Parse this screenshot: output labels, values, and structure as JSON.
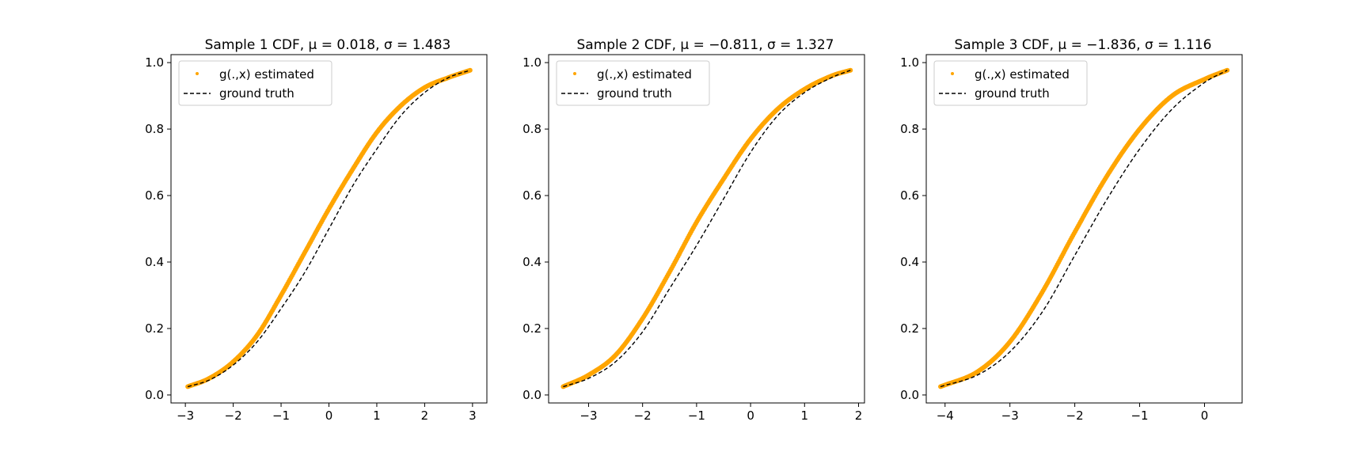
{
  "figure": {
    "background": "#ffffff",
    "estimate_color": "#ffa500",
    "truth_color": "#000000"
  },
  "chart_data": [
    {
      "type": "line",
      "title": "Sample 1 CDF, μ = 0.018, σ = 1.483",
      "mu": 0.018,
      "sigma": 1.483,
      "xlim": [
        -3.3,
        3.3
      ],
      "ylim": [
        -0.024,
        1.024
      ],
      "xticks": [
        -3,
        -2,
        -1,
        0,
        1,
        2,
        3
      ],
      "yticks": [
        0.0,
        0.2,
        0.4,
        0.6,
        0.8,
        1.0
      ],
      "xlabel": "",
      "ylabel": "",
      "grid": false,
      "legend_position": "upper left",
      "series": [
        {
          "name": "g(.,x) estimated",
          "style": "orange dots",
          "x": [
            -2.95,
            -2.5,
            -2.0,
            -1.5,
            -1.0,
            -0.5,
            0.0,
            0.5,
            1.0,
            1.5,
            2.0,
            2.5,
            2.95
          ],
          "y": [
            0.025,
            0.05,
            0.1,
            0.18,
            0.3,
            0.43,
            0.56,
            0.68,
            0.79,
            0.87,
            0.925,
            0.955,
            0.977
          ]
        },
        {
          "name": "ground truth",
          "style": "black dashed",
          "x": [
            -2.95,
            -2.5,
            -2.0,
            -1.5,
            -1.0,
            -0.5,
            0.0,
            0.5,
            1.0,
            1.5,
            2.0,
            2.5,
            2.95
          ],
          "y": [
            0.025,
            0.045,
            0.09,
            0.16,
            0.26,
            0.37,
            0.5,
            0.63,
            0.74,
            0.84,
            0.91,
            0.955,
            0.977
          ]
        }
      ]
    },
    {
      "type": "line",
      "title": "Sample 2 CDF, μ = −0.811, σ = 1.327",
      "mu": -0.811,
      "sigma": 1.327,
      "xlim": [
        -3.74,
        2.11
      ],
      "ylim": [
        -0.024,
        1.024
      ],
      "xticks": [
        -3,
        -2,
        -1,
        0,
        1,
        2
      ],
      "yticks": [
        0.0,
        0.2,
        0.4,
        0.6,
        0.8,
        1.0
      ],
      "xlabel": "",
      "ylabel": "",
      "grid": false,
      "legend_position": "upper left",
      "series": [
        {
          "name": "g(.,x) estimated",
          "style": "orange dots",
          "x": [
            -3.47,
            -3.0,
            -2.5,
            -2.0,
            -1.5,
            -1.0,
            -0.5,
            0.0,
            0.5,
            1.0,
            1.5,
            1.85
          ],
          "y": [
            0.025,
            0.06,
            0.12,
            0.23,
            0.37,
            0.52,
            0.65,
            0.77,
            0.86,
            0.92,
            0.96,
            0.977
          ]
        },
        {
          "name": "ground truth",
          "style": "black dashed",
          "x": [
            -3.47,
            -3.0,
            -2.5,
            -2.0,
            -1.5,
            -1.0,
            -0.5,
            0.0,
            0.5,
            1.0,
            1.5,
            1.85
          ],
          "y": [
            0.025,
            0.05,
            0.1,
            0.19,
            0.32,
            0.45,
            0.59,
            0.73,
            0.84,
            0.91,
            0.955,
            0.977
          ]
        }
      ]
    },
    {
      "type": "line",
      "title": "Sample 3 CDF, μ = −1.836, σ = 1.116",
      "mu": -1.836,
      "sigma": 1.116,
      "xlim": [
        -4.29,
        0.58
      ],
      "ylim": [
        -0.024,
        1.024
      ],
      "xticks": [
        -4,
        -3,
        -2,
        -1,
        0
      ],
      "yticks": [
        0.0,
        0.2,
        0.4,
        0.6,
        0.8,
        1.0
      ],
      "xlabel": "",
      "ylabel": "",
      "grid": false,
      "legend_position": "upper left",
      "series": [
        {
          "name": "g(.,x) estimated",
          "style": "orange dots",
          "x": [
            -4.07,
            -3.5,
            -3.0,
            -2.5,
            -2.0,
            -1.5,
            -1.0,
            -0.5,
            0.0,
            0.35
          ],
          "y": [
            0.025,
            0.07,
            0.16,
            0.31,
            0.49,
            0.66,
            0.8,
            0.9,
            0.95,
            0.977
          ]
        },
        {
          "name": "ground truth",
          "style": "black dashed",
          "x": [
            -4.07,
            -3.5,
            -3.0,
            -2.5,
            -2.0,
            -1.5,
            -1.0,
            -0.5,
            0.0,
            0.35
          ],
          "y": [
            0.025,
            0.06,
            0.13,
            0.25,
            0.42,
            0.59,
            0.74,
            0.86,
            0.94,
            0.977
          ]
        }
      ]
    }
  ]
}
